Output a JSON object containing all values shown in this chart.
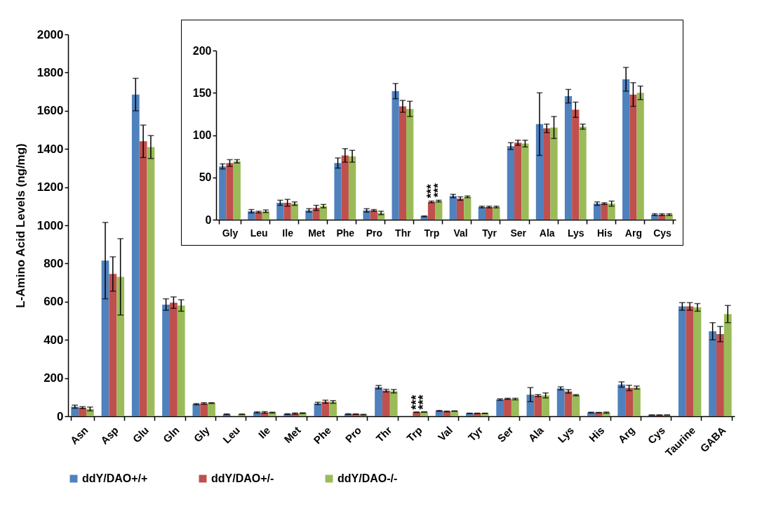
{
  "chart_data": [
    {
      "type": "bar",
      "ylabel": "L-Amino Acid Levels (ng/mg)",
      "categories": [
        "Asn",
        "Asp",
        "Glu",
        "Gln",
        "Gly",
        "Leu",
        "Ile",
        "Met",
        "Phe",
        "Pro",
        "Thr",
        "Trp",
        "Val",
        "Tyr",
        "Ser",
        "Ala",
        "Lys",
        "His",
        "Arg",
        "Cys",
        "Taurine",
        "GABA"
      ],
      "series": [
        {
          "name": "ddY/DAO+/+",
          "color": "#4f81bd",
          "values": [
            50,
            815,
            1685,
            585,
            63,
            10,
            20,
            11,
            67,
            11,
            152,
            null,
            28,
            15,
            87,
            113,
            146,
            19,
            166,
            6,
            575,
            445
          ],
          "errors": [
            8,
            200,
            85,
            30,
            3,
            2,
            3,
            2,
            6,
            2,
            9,
            null,
            2,
            1,
            4,
            37,
            8,
            2,
            14,
            1,
            20,
            45
          ]
        },
        {
          "name": "ddY/DAO+/-",
          "color": "#c0504d",
          "values": [
            45,
            745,
            1440,
            595,
            67,
            null,
            20,
            14,
            76,
            11,
            134,
            21,
            25,
            15,
            91,
            108,
            130,
            19,
            148,
            6,
            575,
            430
          ],
          "errors": [
            5,
            90,
            85,
            30,
            4,
            null,
            4,
            3,
            8,
            1,
            7,
            1,
            2,
            1,
            3,
            5,
            9,
            1,
            14,
            1,
            20,
            40
          ]
        },
        {
          "name": "ddY/DAO-/-",
          "color": "#9bbb59",
          "values": [
            38,
            730,
            1410,
            580,
            69,
            10,
            19,
            16,
            75,
            8,
            131,
            22,
            27,
            15,
            90,
            109,
            110,
            19,
            150,
            6,
            570,
            535
          ],
          "errors": [
            10,
            200,
            60,
            30,
            2,
            1.5,
            2,
            2,
            7,
            2,
            9,
            1,
            1,
            1,
            4,
            13,
            3,
            3,
            8,
            1,
            20,
            45
          ]
        }
      ],
      "ylim": [
        0,
        2000
      ],
      "yticks": [
        0,
        200,
        400,
        600,
        800,
        1000,
        1200,
        1400,
        1600,
        1800,
        2000
      ],
      "grid": false,
      "legend": "bottom",
      "annotations": [
        {
          "text": "***",
          "x": "Trp",
          "y": 23
        },
        {
          "text": "***",
          "x": "Trp",
          "y": 24
        }
      ]
    },
    {
      "type": "bar",
      "categories": [
        "Gly",
        "Leu",
        "Ile",
        "Met",
        "Phe",
        "Pro",
        "Thr",
        "Trp",
        "Val",
        "Tyr",
        "Ser",
        "Ala",
        "Lys",
        "His",
        "Arg",
        "Cys"
      ],
      "series": [
        {
          "color": "#4f81bd",
          "values": [
            63,
            10,
            20,
            11,
            67,
            11,
            152,
            4,
            28,
            15,
            87,
            113,
            146,
            19,
            166,
            6
          ],
          "errors": [
            3,
            2,
            3,
            2,
            6,
            2,
            9,
            0.5,
            2,
            1,
            4,
            37,
            8,
            2,
            14,
            1
          ]
        },
        {
          "color": "#c0504d",
          "values": [
            67,
            9,
            20,
            14,
            76,
            11,
            134,
            21,
            25,
            15,
            91,
            108,
            130,
            19,
            148,
            6
          ],
          "errors": [
            4,
            1,
            4,
            3,
            8,
            1,
            7,
            1,
            2,
            1,
            3,
            5,
            9,
            1,
            14,
            1
          ]
        },
        {
          "color": "#9bbb59",
          "values": [
            69,
            10,
            19,
            16,
            75,
            8,
            131,
            22,
            27,
            15,
            90,
            109,
            110,
            19,
            150,
            6
          ],
          "errors": [
            2,
            1.5,
            2,
            2,
            7,
            2,
            9,
            1,
            1,
            1,
            4,
            13,
            3,
            3,
            8,
            1
          ]
        }
      ],
      "ylim": [
        0,
        200
      ],
      "yticks": [
        0,
        50,
        100,
        150,
        200
      ],
      "grid": false,
      "legend": false,
      "annotations": [
        {
          "text": "***",
          "x": "Trp",
          "y": 23
        },
        {
          "text": "***",
          "x": "Trp",
          "y": 24
        }
      ]
    }
  ]
}
